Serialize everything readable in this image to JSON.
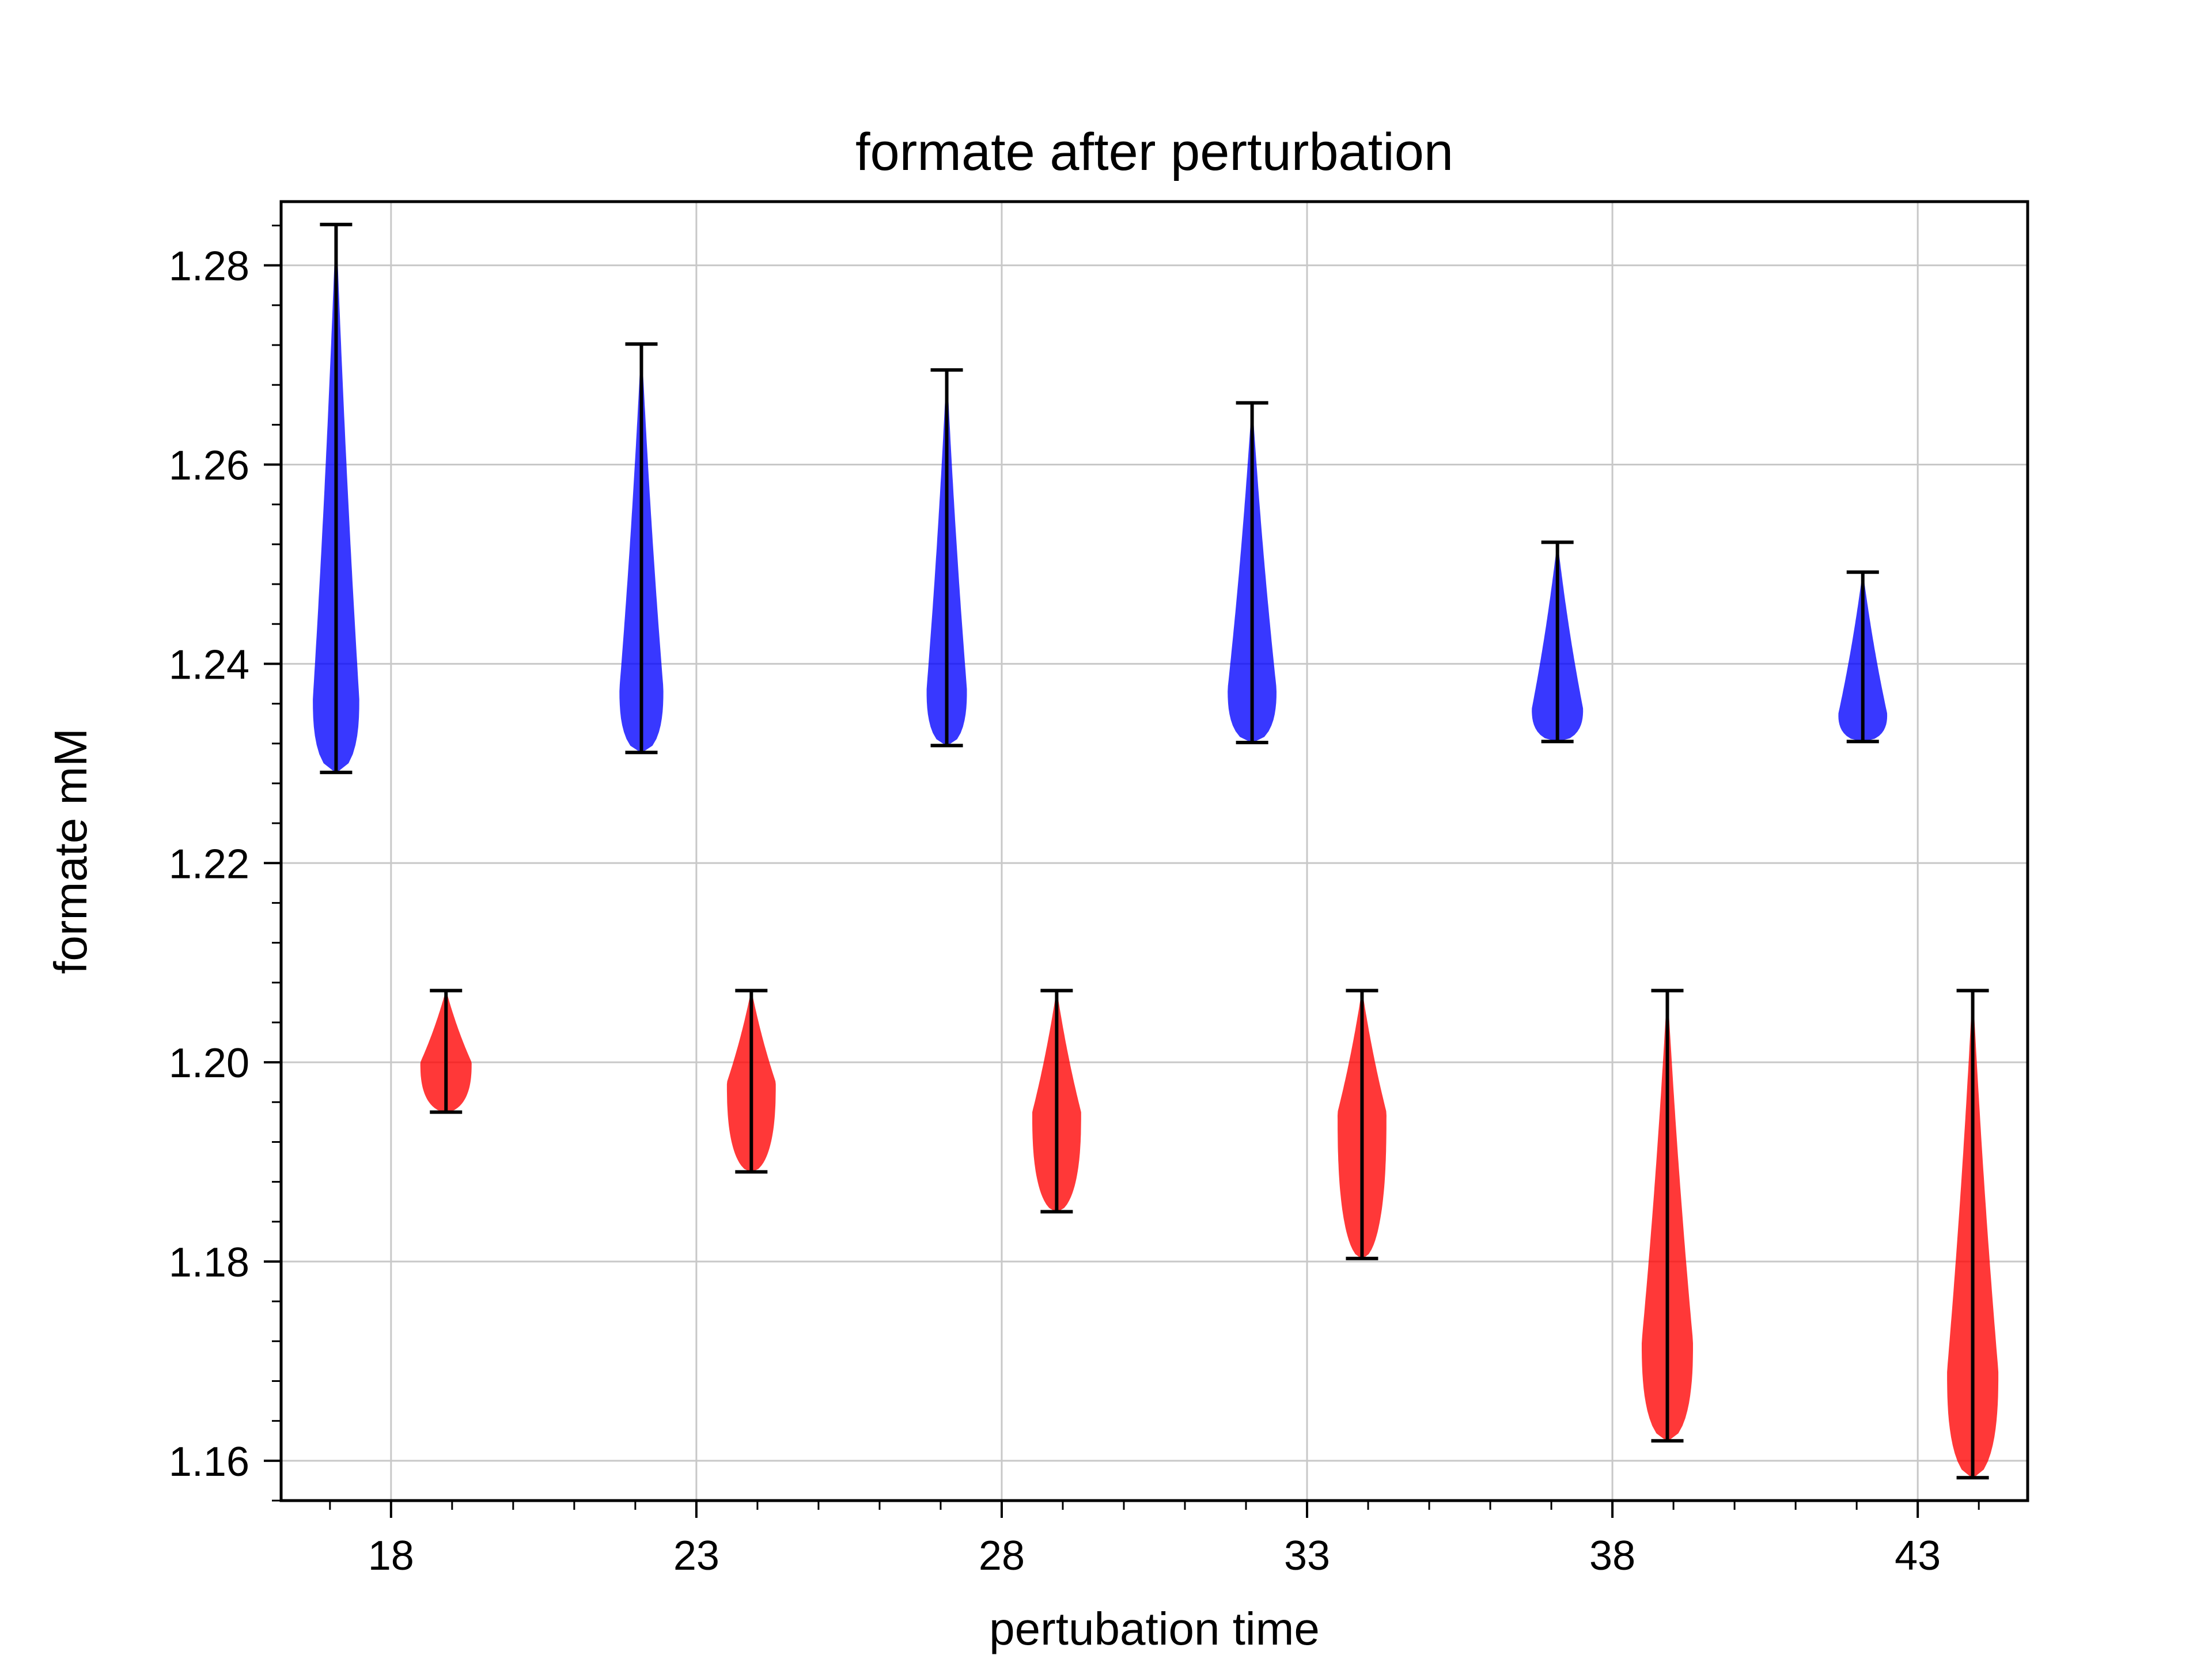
{
  "chart_data": {
    "type": "violin",
    "title": "formate after perturbation",
    "xlabel": "pertubation time",
    "ylabel": "formate mM",
    "x_ticks": [
      "18",
      "23",
      "28",
      "33",
      "38",
      "43"
    ],
    "y_ticks": [
      "1.16",
      "1.18",
      "1.20",
      "1.22",
      "1.24",
      "1.26",
      "1.28"
    ],
    "xlim": [
      16.2,
      44.8
    ],
    "ylim": [
      1.156,
      1.2864
    ],
    "grid": true,
    "series": [
      {
        "color": "#0000ff",
        "violins": [
          {
            "x": 17.1,
            "min": 1.2291,
            "max": 1.2841,
            "peak": 1.2365,
            "halfwidth": 0.38
          },
          {
            "x": 22.1,
            "min": 1.2311,
            "max": 1.2721,
            "peak": 1.2375,
            "halfwidth": 0.36
          },
          {
            "x": 27.1,
            "min": 1.2318,
            "max": 1.2695,
            "peak": 1.2375,
            "halfwidth": 0.33
          },
          {
            "x": 32.1,
            "min": 1.2321,
            "max": 1.2662,
            "peak": 1.2375,
            "halfwidth": 0.4
          },
          {
            "x": 37.1,
            "min": 1.2322,
            "max": 1.2522,
            "peak": 1.2355,
            "halfwidth": 0.42
          },
          {
            "x": 42.1,
            "min": 1.2322,
            "max": 1.2492,
            "peak": 1.235,
            "halfwidth": 0.4
          }
        ]
      },
      {
        "color": "#ff0000",
        "violins": [
          {
            "x": 18.9,
            "min": 1.195,
            "max": 1.2072,
            "peak": 1.2,
            "halfwidth": 0.42
          },
          {
            "x": 23.9,
            "min": 1.189,
            "max": 1.2072,
            "peak": 1.198,
            "halfwidth": 0.4
          },
          {
            "x": 28.9,
            "min": 1.185,
            "max": 1.2072,
            "peak": 1.195,
            "halfwidth": 0.4
          },
          {
            "x": 33.9,
            "min": 1.1803,
            "max": 1.2072,
            "peak": 1.195,
            "halfwidth": 0.4
          },
          {
            "x": 38.9,
            "min": 1.162,
            "max": 1.2072,
            "peak": 1.172,
            "halfwidth": 0.42
          },
          {
            "x": 43.9,
            "min": 1.1583,
            "max": 1.2072,
            "peak": 1.169,
            "halfwidth": 0.42
          }
        ]
      }
    ]
  }
}
